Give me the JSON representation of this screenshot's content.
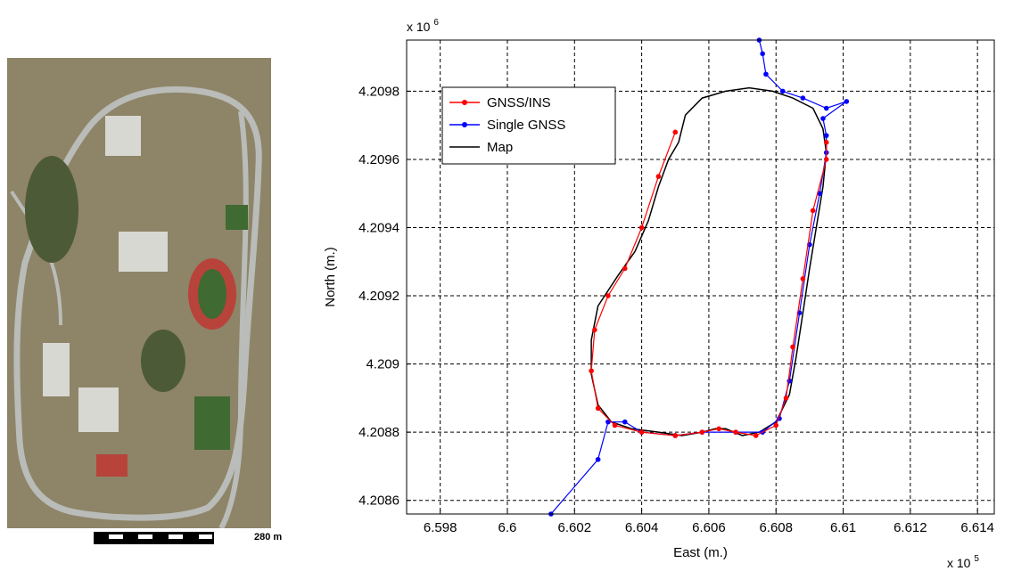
{
  "aerial": {
    "scale_label": "280 m",
    "colors": {
      "ground": "#8e8468",
      "road": "#b9bcb8",
      "track": "#b8433a",
      "field": "#3f6a32",
      "vegetation": "#4d5a38",
      "building": "#d8d8d2"
    }
  },
  "chart_data": {
    "type": "line",
    "title": "",
    "xlabel": "East (m.)",
    "ylabel": "North (m.)",
    "x_multiplier": "x 10",
    "x_multiplier_exp": "5",
    "y_multiplier": "x 10",
    "y_multiplier_exp": "6",
    "xlim": [
      6.597,
      6.6145
    ],
    "ylim": [
      4.20856,
      4.20995
    ],
    "xticks": [
      6.598,
      6.6,
      6.602,
      6.604,
      6.606,
      6.608,
      6.61,
      6.612,
      6.614
    ],
    "xtick_labels": [
      "6.598",
      "6.6",
      "6.602",
      "6.604",
      "6.606",
      "6.608",
      "6.61",
      "6.612",
      "6.614"
    ],
    "yticks": [
      4.2086,
      4.2088,
      4.209,
      4.2092,
      4.2094,
      4.2096,
      4.2098
    ],
    "ytick_labels": [
      "4.2086",
      "4.2088",
      "4.209",
      "4.2092",
      "4.2094",
      "4.2096",
      "4.2098"
    ],
    "grid": true,
    "legend_position": "top-left",
    "series": [
      {
        "name": "GNSS/INS",
        "color": "#ff0000",
        "marker": "dot",
        "points": [
          [
            6.605,
            4.20968
          ],
          [
            6.6045,
            4.20955
          ],
          [
            6.604,
            4.2094
          ],
          [
            6.6035,
            4.20928
          ],
          [
            6.603,
            4.2092
          ],
          [
            6.6026,
            4.2091
          ],
          [
            6.6025,
            4.20898
          ],
          [
            6.6027,
            4.20887
          ],
          [
            6.6032,
            4.20882
          ],
          [
            6.604,
            4.2088
          ],
          [
            6.605,
            4.20879
          ],
          [
            6.6058,
            4.2088
          ],
          [
            6.6063,
            4.20881
          ],
          [
            6.6068,
            4.2088
          ],
          [
            6.6074,
            4.20879
          ],
          [
            6.608,
            4.20882
          ],
          [
            6.6083,
            4.2089
          ],
          [
            6.6085,
            4.20905
          ],
          [
            6.6088,
            4.20925
          ],
          [
            6.6091,
            4.20945
          ],
          [
            6.6095,
            4.2096
          ],
          [
            6.6095,
            4.20965
          ]
        ]
      },
      {
        "name": "Single GNSS",
        "color": "#0000ff",
        "marker": "dot",
        "points": [
          [
            6.6013,
            4.20856
          ],
          [
            6.6027,
            4.20872
          ],
          [
            6.603,
            4.20883
          ],
          [
            6.6035,
            4.20883
          ],
          [
            6.604,
            4.2088
          ],
          [
            6.605,
            4.20879
          ],
          [
            6.6058,
            4.2088
          ],
          [
            6.6068,
            4.2088
          ],
          [
            6.6076,
            4.2088
          ],
          [
            6.6081,
            4.20884
          ],
          [
            6.6084,
            4.20895
          ],
          [
            6.6087,
            4.20915
          ],
          [
            6.609,
            4.20935
          ],
          [
            6.6093,
            4.2095
          ],
          [
            6.6095,
            4.20962
          ],
          [
            6.6095,
            4.20967
          ],
          [
            6.6094,
            4.20972
          ],
          [
            6.6101,
            4.20977
          ],
          [
            6.6095,
            4.20975
          ],
          [
            6.6088,
            4.20978
          ],
          [
            6.6082,
            4.2098
          ],
          [
            6.6077,
            4.20985
          ],
          [
            6.6076,
            4.20991
          ],
          [
            6.6075,
            4.20995
          ]
        ]
      },
      {
        "name": "Map",
        "color": "#000000",
        "marker": "none",
        "points": [
          [
            6.6051,
            4.20965
          ],
          [
            6.6053,
            4.20973
          ],
          [
            6.6058,
            4.20978
          ],
          [
            6.6065,
            4.2098
          ],
          [
            6.6072,
            4.20981
          ],
          [
            6.6079,
            4.2098
          ],
          [
            6.6085,
            4.20978
          ],
          [
            6.6091,
            4.20975
          ],
          [
            6.6094,
            4.20969
          ],
          [
            6.6095,
            4.20962
          ],
          [
            6.6094,
            4.20952
          ],
          [
            6.6092,
            4.2094
          ],
          [
            6.609,
            4.20928
          ],
          [
            6.6088,
            4.20915
          ],
          [
            6.6086,
            4.20902
          ],
          [
            6.6084,
            4.20891
          ],
          [
            6.608,
            4.20883
          ],
          [
            6.6075,
            4.2088
          ],
          [
            6.607,
            4.20879
          ],
          [
            6.6065,
            4.20881
          ],
          [
            6.6062,
            4.20881
          ],
          [
            6.6058,
            4.2088
          ],
          [
            6.6052,
            4.20879
          ],
          [
            6.6045,
            4.2088
          ],
          [
            6.6037,
            4.20881
          ],
          [
            6.6031,
            4.20883
          ],
          [
            6.6027,
            4.20888
          ],
          [
            6.6025,
            4.20897
          ],
          [
            6.6025,
            4.20907
          ],
          [
            6.6027,
            4.20917
          ],
          [
            6.6033,
            4.20926
          ],
          [
            6.6038,
            4.20933
          ],
          [
            6.6042,
            4.20942
          ],
          [
            6.6045,
            4.20952
          ],
          [
            6.6048,
            4.2096
          ],
          [
            6.6051,
            4.20965
          ]
        ]
      }
    ]
  }
}
